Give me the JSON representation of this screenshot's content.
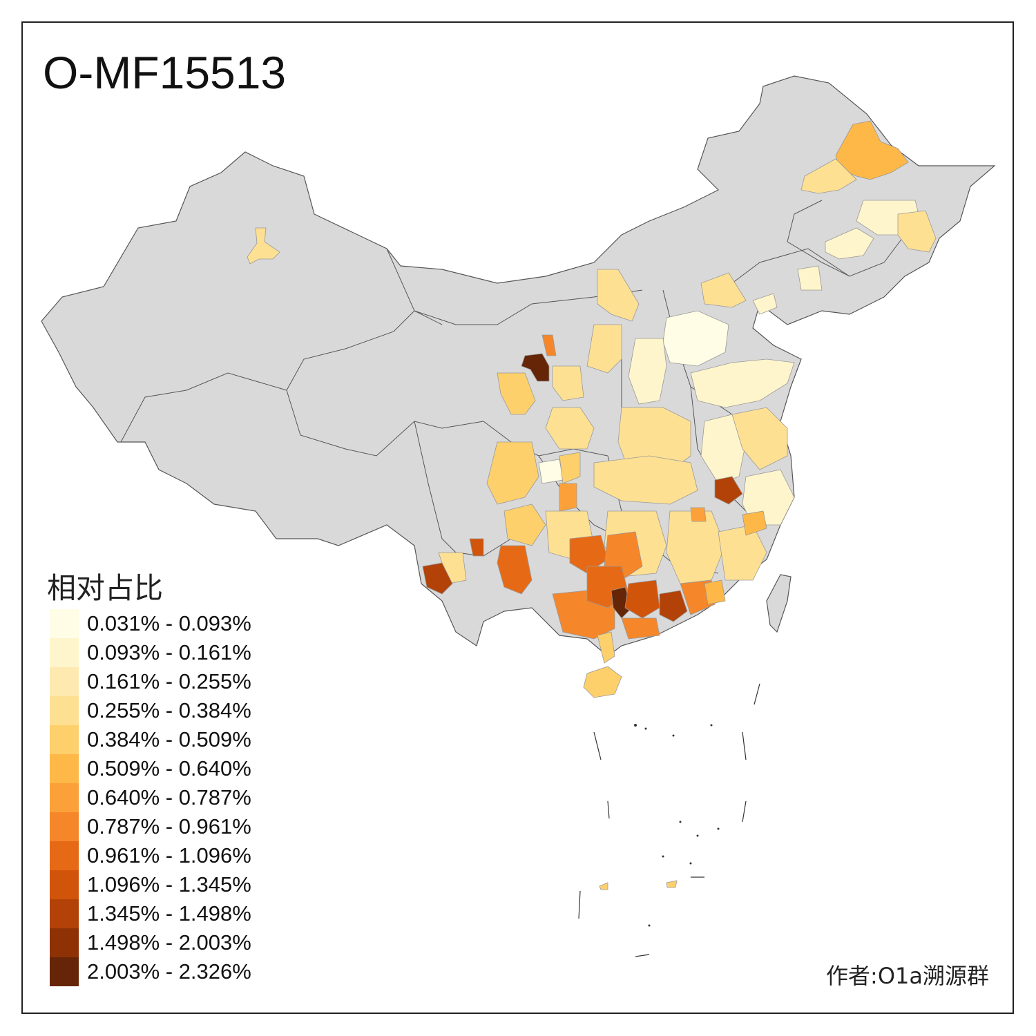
{
  "title": "O-MF15513",
  "legend": {
    "title": "相对占比",
    "bins": [
      {
        "label": "0.031% - 0.093%",
        "color": "#fffde6"
      },
      {
        "label": "0.093% - 0.161%",
        "color": "#fff5cc"
      },
      {
        "label": "0.161% - 0.255%",
        "color": "#feeab0"
      },
      {
        "label": "0.255% - 0.384%",
        "color": "#fee093"
      },
      {
        "label": "0.384% - 0.509%",
        "color": "#fed06c"
      },
      {
        "label": "0.509% - 0.640%",
        "color": "#feb848"
      },
      {
        "label": "0.640% - 0.787%",
        "color": "#fca13a"
      },
      {
        "label": "0.787% - 0.961%",
        "color": "#f5862a"
      },
      {
        "label": "0.961% - 1.096%",
        "color": "#e66a16"
      },
      {
        "label": "1.096% - 1.345%",
        "color": "#d1540b"
      },
      {
        "label": "1.345% - 1.498%",
        "color": "#b24207"
      },
      {
        "label": "1.498% - 2.003%",
        "color": "#8e3206"
      },
      {
        "label": "2.003% - 2.326%",
        "color": "#662506"
      }
    ]
  },
  "credit": "作者:O1a溯源群",
  "colors": {
    "no_data": "#d9d9d9",
    "border": "#555555"
  }
}
